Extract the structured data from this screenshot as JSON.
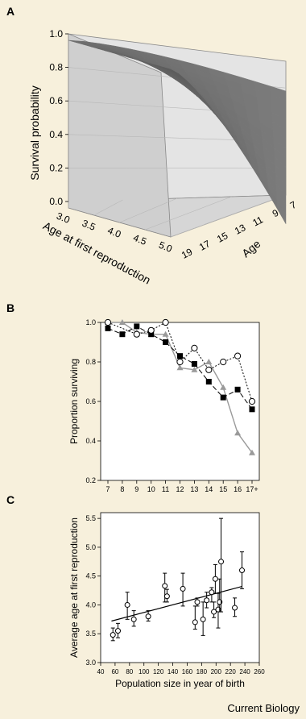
{
  "panels": {
    "a": {
      "letter": "A"
    },
    "b": {
      "letter": "B"
    },
    "c": {
      "letter": "C"
    }
  },
  "credit": "Current Biology",
  "chart_data": [
    {
      "panel": "A",
      "type": "surface",
      "zlabel": "Survival probability",
      "xlabel": "Age at first reproduction",
      "ylabel": "Age",
      "z_ticks": [
        "0.0",
        "0.2",
        "0.4",
        "0.6",
        "0.8",
        "1.0"
      ],
      "x_ticks": [
        "3.0",
        "3.5",
        "4.0",
        "4.5",
        "5.0"
      ],
      "y_ticks": [
        "7",
        "9",
        "11",
        "13",
        "15",
        "17",
        "19"
      ],
      "zlim": [
        0,
        1
      ],
      "xlim": [
        3,
        5
      ],
      "ylim": [
        7,
        19
      ],
      "corners": [
        {
          "afr": 3.0,
          "age": 7,
          "survival": 1.0
        },
        {
          "afr": 3.0,
          "age": 19,
          "survival": 0.62
        },
        {
          "afr": 5.0,
          "age": 7,
          "survival": 1.0
        },
        {
          "afr": 5.0,
          "age": 19,
          "survival": 0.02
        }
      ],
      "colors": {
        "surface": "#7a7a7a",
        "surface_dark": "#565656"
      }
    },
    {
      "panel": "B",
      "type": "line",
      "ylabel": "Proportion surviving",
      "xlabel": "Age",
      "categories": [
        "7",
        "8",
        "9",
        "10",
        "11",
        "12",
        "13",
        "14",
        "15",
        "16",
        "17+"
      ],
      "ylim": [
        0.2,
        1.0
      ],
      "y_ticks": [
        "0.2",
        "0.4",
        "0.6",
        "0.8",
        "1.0"
      ],
      "series": [
        {
          "marker": "triangle",
          "line": "solid",
          "color": "#9a9a9a",
          "values": [
            1.0,
            1.0,
            0.95,
            0.94,
            0.94,
            0.77,
            0.76,
            0.8,
            0.67,
            0.44,
            0.34
          ]
        },
        {
          "marker": "square",
          "line": "dashed",
          "color": "#000000",
          "values": [
            0.97,
            0.94,
            0.98,
            0.94,
            0.9,
            0.83,
            0.79,
            0.7,
            0.62,
            0.66,
            0.56
          ]
        },
        {
          "marker": "circle-open",
          "line": "dotted",
          "color": "#000000",
          "values": [
            1.0,
            null,
            0.94,
            0.96,
            1.0,
            0.8,
            0.87,
            0.76,
            0.8,
            0.83,
            0.6
          ]
        }
      ]
    },
    {
      "panel": "C",
      "type": "scatter",
      "ylabel": "Average age at first reproduction",
      "xlabel": "Population size in year of birth",
      "xlim": [
        40,
        260
      ],
      "ylim": [
        3.0,
        5.6
      ],
      "x_ticks": [
        "40",
        "60",
        "80",
        "100",
        "120",
        "140",
        "160",
        "180",
        "200",
        "220",
        "240",
        "260"
      ],
      "y_ticks": [
        "3.0",
        "3.5",
        "4.0",
        "4.5",
        "5.0",
        "5.5"
      ],
      "points": [
        {
          "x": 57,
          "y": 3.48,
          "lo": 3.38,
          "hi": 3.6
        },
        {
          "x": 64,
          "y": 3.55,
          "lo": 3.43,
          "hi": 3.68
        },
        {
          "x": 77,
          "y": 4.0,
          "lo": 3.75,
          "hi": 4.22
        },
        {
          "x": 86,
          "y": 3.75,
          "lo": 3.63,
          "hi": 3.9
        },
        {
          "x": 106,
          "y": 3.8,
          "lo": 3.72,
          "hi": 3.9
        },
        {
          "x": 129,
          "y": 4.33,
          "lo": 4.05,
          "hi": 4.55
        },
        {
          "x": 132,
          "y": 4.15,
          "lo": 4.05,
          "hi": 4.27
        },
        {
          "x": 154,
          "y": 4.28,
          "lo": 3.98,
          "hi": 4.55
        },
        {
          "x": 171,
          "y": 3.7,
          "lo": 3.58,
          "hi": 3.98
        },
        {
          "x": 174,
          "y": 4.05,
          "lo": 3.98,
          "hi": 4.12
        },
        {
          "x": 182,
          "y": 3.75,
          "lo": 3.47,
          "hi": 4.05
        },
        {
          "x": 187,
          "y": 4.08,
          "lo": 3.95,
          "hi": 4.22
        },
        {
          "x": 194,
          "y": 4.22,
          "lo": 4.05,
          "hi": 4.3
        },
        {
          "x": 197,
          "y": 3.88,
          "lo": 3.78,
          "hi": 4.05
        },
        {
          "x": 199,
          "y": 4.45,
          "lo": 4.2,
          "hi": 4.7
        },
        {
          "x": 203,
          "y": 3.92,
          "lo": 3.6,
          "hi": 4.2
        },
        {
          "x": 205,
          "y": 4.05,
          "lo": 3.88,
          "hi": 4.45
        },
        {
          "x": 207,
          "y": 4.75,
          "lo": 3.88,
          "hi": 5.5
        },
        {
          "x": 226,
          "y": 3.95,
          "lo": 3.8,
          "hi": 4.12
        },
        {
          "x": 236,
          "y": 4.6,
          "lo": 4.28,
          "hi": 4.92
        }
      ],
      "trend": {
        "x0": 55,
        "y0": 3.72,
        "x1": 236,
        "y1": 4.32
      }
    }
  ]
}
